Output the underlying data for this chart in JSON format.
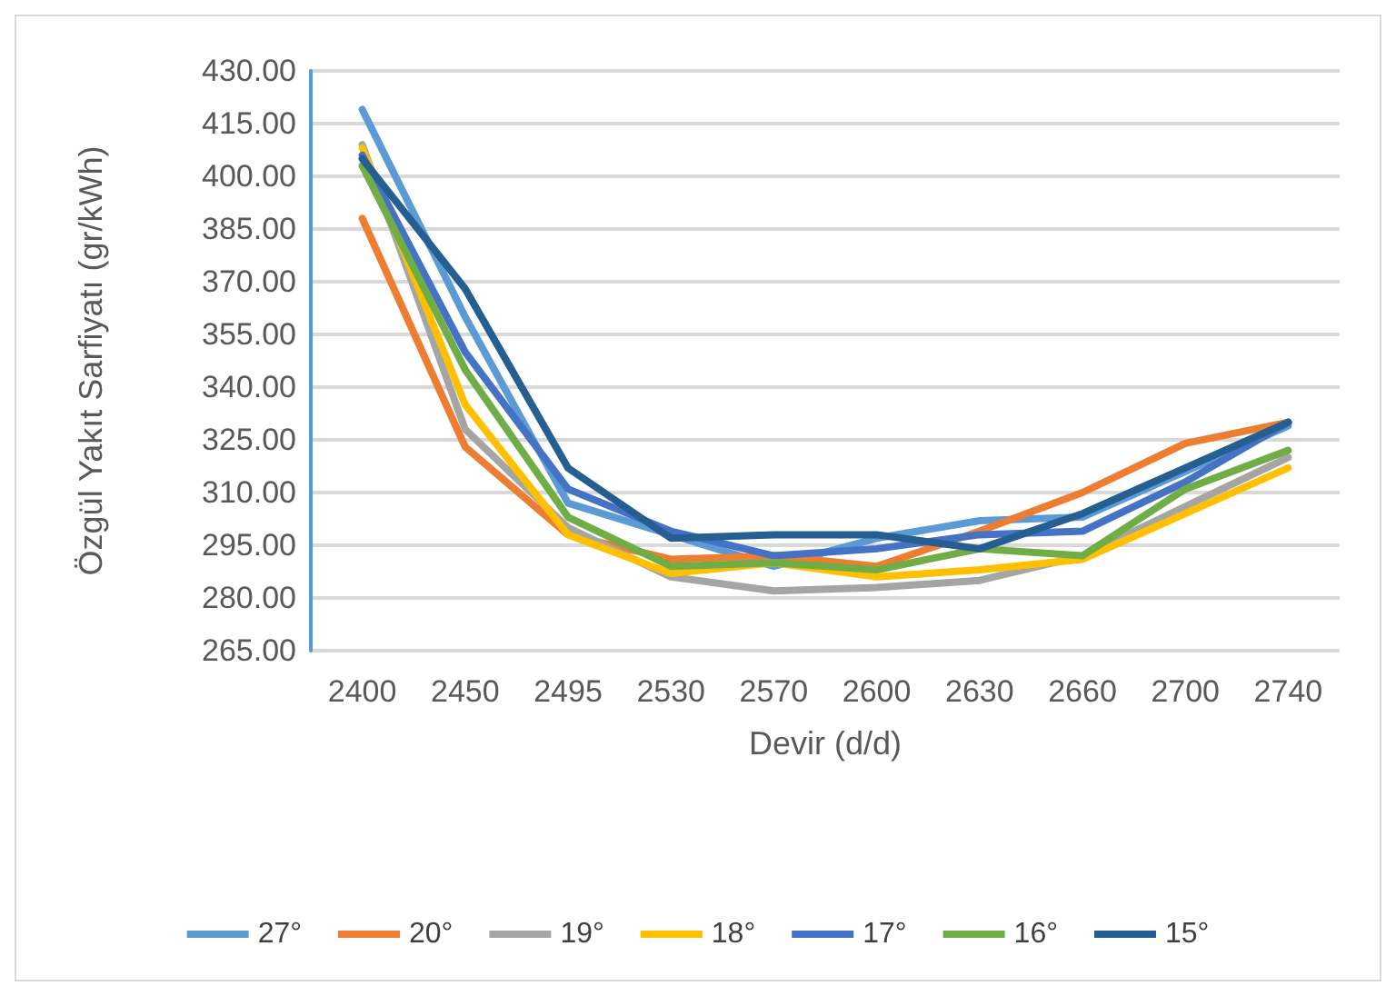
{
  "chart_data": {
    "type": "line",
    "xlabel": "Devir (d/d)",
    "ylabel": "Özgül Yakıt Sarfiyatı (gr/kWh)",
    "categories": [
      "2400",
      "2450",
      "2495",
      "2530",
      "2570",
      "2600",
      "2630",
      "2660",
      "2700",
      "2740"
    ],
    "series": [
      {
        "name": "27°",
        "color": "#5b9bd5",
        "values": [
          419,
          360,
          307,
          298,
          289,
          297,
          302,
          303,
          316,
          329
        ]
      },
      {
        "name": "20°",
        "color": "#ed7d31",
        "values": [
          388,
          323,
          298,
          291,
          292,
          289,
          299,
          310,
          324,
          330
        ]
      },
      {
        "name": "19°",
        "color": "#a5a5a5",
        "values": [
          409,
          328,
          300,
          286,
          282,
          283,
          285,
          292,
          306,
          320
        ]
      },
      {
        "name": "18°",
        "color": "#ffc000",
        "values": [
          408,
          335,
          298,
          287,
          290,
          286,
          288,
          291,
          304,
          317
        ]
      },
      {
        "name": "17°",
        "color": "#4472c4",
        "values": [
          406,
          350,
          311,
          299,
          292,
          294,
          298,
          299,
          313,
          330
        ]
      },
      {
        "name": "16°",
        "color": "#70ad47",
        "values": [
          403,
          345,
          303,
          289,
          290,
          288,
          294,
          292,
          311,
          322
        ]
      },
      {
        "name": "15°",
        "color": "#255e91",
        "values": [
          405,
          368,
          317,
          297,
          298,
          298,
          294,
          304,
          317,
          330
        ]
      }
    ],
    "ylim": [
      265,
      430
    ],
    "yticks": [
      {
        "value": 265,
        "label": "265.00"
      },
      {
        "value": 280,
        "label": "280.00"
      },
      {
        "value": 295,
        "label": "295.00"
      },
      {
        "value": 310,
        "label": "310.00"
      },
      {
        "value": 325,
        "label": "325.00"
      },
      {
        "value": 340,
        "label": "340.00"
      },
      {
        "value": 355,
        "label": "355.00"
      },
      {
        "value": 370,
        "label": "370.00"
      },
      {
        "value": 385,
        "label": "385.00"
      },
      {
        "value": 400,
        "label": "400.00"
      },
      {
        "value": 415,
        "label": "415.00"
      },
      {
        "value": 430,
        "label": "430.00"
      }
    ],
    "grid": "y",
    "legend": "bottom",
    "marker": "none",
    "line_style": "solid"
  }
}
